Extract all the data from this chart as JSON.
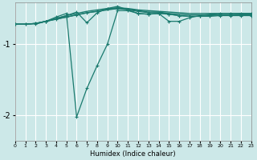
{
  "xlabel": "Humidex (Indice chaleur)",
  "ylabel": "",
  "bg_color": "#cce8e8",
  "grid_color": "#ffffff",
  "line_color": "#1a7a6e",
  "x_ticks": [
    0,
    1,
    2,
    3,
    4,
    5,
    6,
    7,
    8,
    9,
    10,
    11,
    12,
    13,
    14,
    15,
    16,
    17,
    18,
    19,
    20,
    21,
    22,
    23
  ],
  "xlim": [
    0,
    23
  ],
  "ylim": [
    -2.35,
    -0.42
  ],
  "yticks": [
    -2,
    -1
  ],
  "series": [
    {
      "x": [
        0,
        1,
        2,
        3,
        4,
        5,
        6,
        7,
        8,
        9,
        10,
        11,
        12,
        13,
        14,
        15,
        16,
        17,
        18,
        19,
        20,
        21,
        22,
        23
      ],
      "y": [
        -0.72,
        -0.72,
        -0.71,
        -0.68,
        -0.64,
        -0.6,
        -0.57,
        -0.54,
        -0.52,
        -0.5,
        -0.49,
        -0.5,
        -0.52,
        -0.53,
        -0.54,
        -0.55,
        -0.56,
        -0.57,
        -0.57,
        -0.57,
        -0.57,
        -0.57,
        -0.57,
        -0.57
      ],
      "marker": null,
      "lw": 1.0
    },
    {
      "x": [
        0,
        1,
        2,
        3,
        4,
        5,
        6,
        7,
        8,
        9,
        10,
        11,
        12,
        13,
        14,
        15,
        16,
        17,
        18,
        19,
        20,
        21,
        22,
        23
      ],
      "y": [
        -0.72,
        -0.72,
        -0.71,
        -0.68,
        -0.65,
        -0.62,
        -0.59,
        -0.56,
        -0.54,
        -0.52,
        -0.5,
        -0.51,
        -0.53,
        -0.55,
        -0.55,
        -0.57,
        -0.58,
        -0.59,
        -0.59,
        -0.59,
        -0.59,
        -0.59,
        -0.59,
        -0.59
      ],
      "marker": null,
      "lw": 1.0
    },
    {
      "x": [
        0,
        1,
        2,
        3,
        4,
        5,
        6,
        7,
        8,
        9,
        10,
        11,
        12,
        13,
        14,
        15,
        16,
        17,
        18,
        19,
        20,
        21,
        22,
        23
      ],
      "y": [
        -0.72,
        -0.72,
        -0.71,
        -0.68,
        -0.65,
        -0.62,
        -0.59,
        -0.56,
        -0.54,
        -0.51,
        -0.5,
        -0.52,
        -0.54,
        -0.56,
        -0.56,
        -0.58,
        -0.6,
        -0.61,
        -0.61,
        -0.61,
        -0.6,
        -0.6,
        -0.6,
        -0.6
      ],
      "marker": "+",
      "lw": 0.9
    },
    {
      "x": [
        0,
        1,
        2,
        3,
        4,
        5,
        6,
        7,
        8,
        9,
        10,
        11,
        12,
        13,
        14,
        15,
        16,
        17,
        18,
        19,
        20,
        21,
        22,
        23
      ],
      "y": [
        -0.72,
        -0.72,
        -0.71,
        -0.68,
        -0.64,
        -0.6,
        -0.55,
        -0.7,
        -0.56,
        -0.5,
        -0.47,
        -0.52,
        -0.57,
        -0.58,
        -0.57,
        -0.58,
        -0.6,
        -0.61,
        -0.61,
        -0.6,
        -0.59,
        -0.59,
        -0.58,
        -0.58
      ],
      "marker": "+",
      "lw": 0.9
    },
    {
      "x": [
        2,
        3,
        4,
        5,
        6,
        7,
        8,
        9,
        10,
        11,
        12,
        13,
        14,
        15,
        16,
        17,
        18,
        19,
        20,
        21,
        22,
        23
      ],
      "y": [
        -0.72,
        -0.68,
        -0.62,
        -0.57,
        -2.02,
        -1.62,
        -1.3,
        -1.0,
        -0.53,
        -0.53,
        -0.57,
        -0.58,
        -0.57,
        -0.68,
        -0.68,
        -0.63,
        -0.6,
        -0.58,
        -0.57,
        -0.57,
        -0.57,
        -0.57
      ],
      "marker": "+",
      "lw": 0.9
    }
  ]
}
